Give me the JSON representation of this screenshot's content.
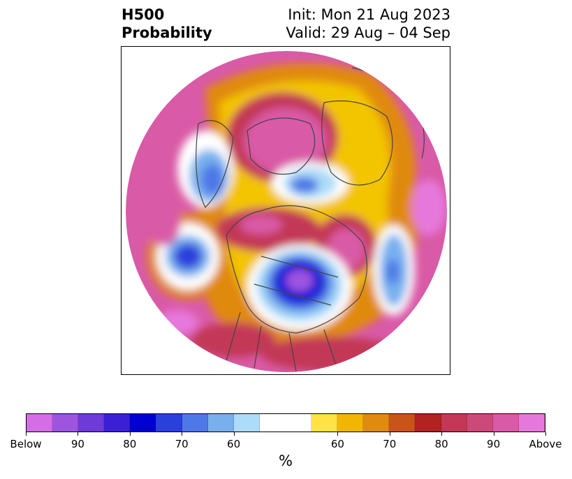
{
  "title": {
    "left_line1": "H500",
    "left_line2": "Probability",
    "right_line1": "Init: Mon 21 Aug 2023",
    "right_line2": "Valid: 29 Aug – 04 Sep"
  },
  "colorbar": {
    "colors": [
      "#d56ee6",
      "#9d55e0",
      "#6e3ad8",
      "#3a1fd6",
      "#0000d2",
      "#2b3fdc",
      "#4e78e6",
      "#78b0ee",
      "#acdcf8",
      "#ffffff",
      "#ffe244",
      "#f3b600",
      "#e08a10",
      "#c85418",
      "#b22222",
      "#c23856",
      "#cc4a7a",
      "#d95aa6",
      "#e678dc"
    ],
    "widths": [
      1,
      1,
      1,
      1,
      1,
      1,
      1,
      1,
      1,
      2,
      1,
      1,
      1,
      1,
      1,
      1,
      1,
      1,
      1
    ],
    "ticks": [
      "Below",
      "90",
      "80",
      "70",
      "60",
      "60",
      "70",
      "80",
      "90",
      "Above"
    ],
    "unit": "%"
  },
  "map": {
    "projection": "north polar stereographic",
    "fill_colors": {
      "above_high": "#d95aa6",
      "above_mid": "#c23856",
      "above_low": "#e08a10",
      "above_min": "#f3c400",
      "neutral": "#ffffff",
      "below_min": "#acdcf8",
      "below_low": "#78b0ee",
      "below_mid": "#4e78e6",
      "below_high": "#2b3fdc",
      "below_max": "#0000d2",
      "below_extreme": "#9d55e0"
    }
  }
}
